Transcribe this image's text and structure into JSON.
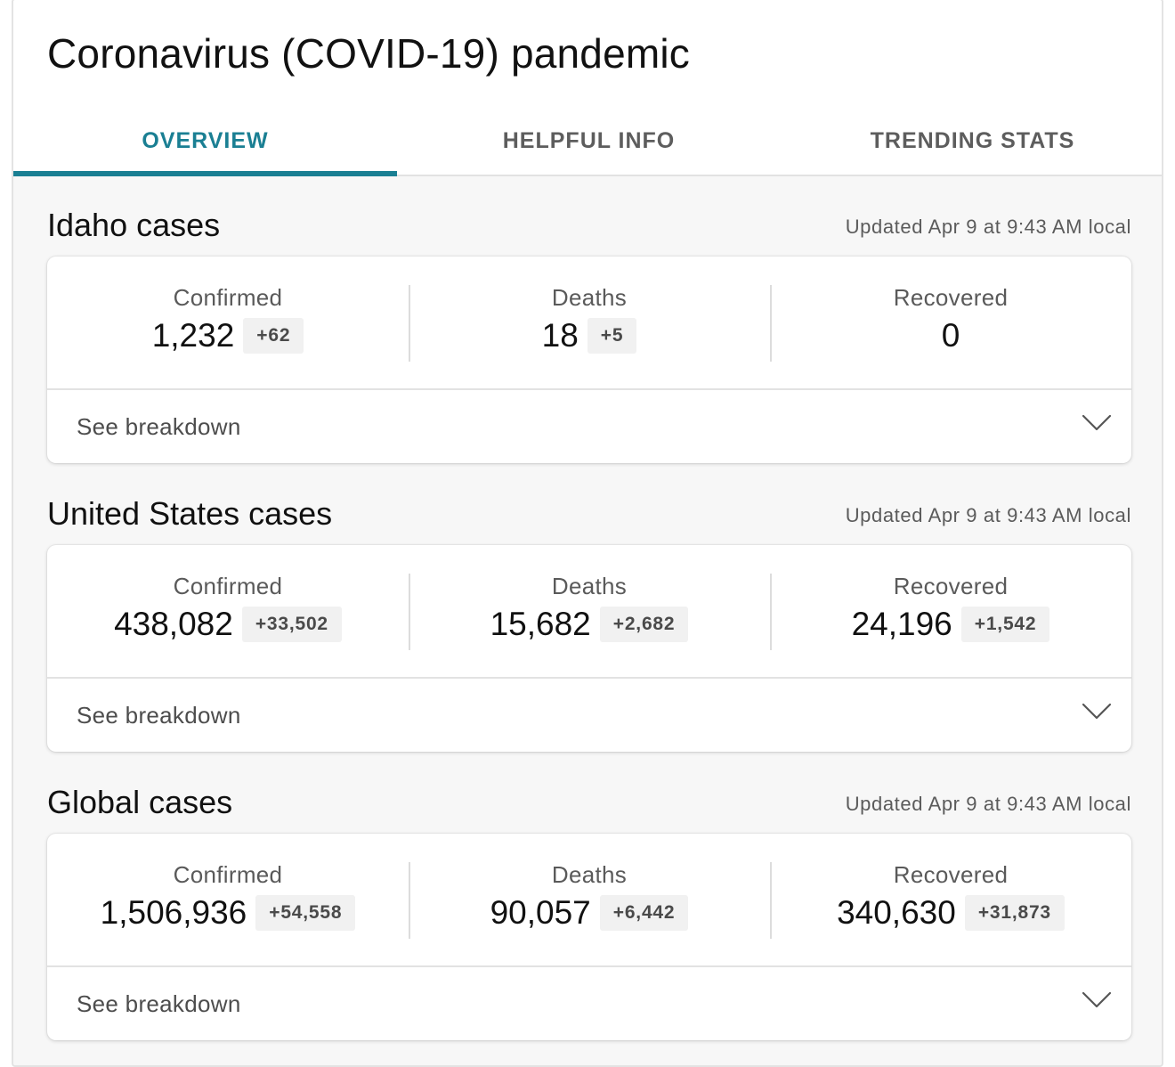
{
  "header": {
    "title": "Coronavirus (COVID-19) pandemic",
    "tabs": [
      {
        "label": "OVERVIEW",
        "active": true
      },
      {
        "label": "HELPFUL INFO",
        "active": false
      },
      {
        "label": "TRENDING STATS",
        "active": false
      }
    ]
  },
  "accent_color": "#1a7f93",
  "breakdown_label": "See breakdown",
  "sections": [
    {
      "title": "Idaho cases",
      "updated": "Updated Apr 9 at 9:43 AM local",
      "confirmed": {
        "label": "Confirmed",
        "value": "1,232",
        "delta": "+62"
      },
      "deaths": {
        "label": "Deaths",
        "value": "18",
        "delta": "+5"
      },
      "recovered": {
        "label": "Recovered",
        "value": "0",
        "delta": ""
      }
    },
    {
      "title": "United States cases",
      "updated": "Updated Apr 9 at 9:43 AM local",
      "confirmed": {
        "label": "Confirmed",
        "value": "438,082",
        "delta": "+33,502"
      },
      "deaths": {
        "label": "Deaths",
        "value": "15,682",
        "delta": "+2,682"
      },
      "recovered": {
        "label": "Recovered",
        "value": "24,196",
        "delta": "+1,542"
      }
    },
    {
      "title": "Global cases",
      "updated": "Updated Apr 9 at 9:43 AM local",
      "confirmed": {
        "label": "Confirmed",
        "value": "1,506,936",
        "delta": "+54,558"
      },
      "deaths": {
        "label": "Deaths",
        "value": "90,057",
        "delta": "+6,442"
      },
      "recovered": {
        "label": "Recovered",
        "value": "340,630",
        "delta": "+31,873"
      }
    }
  ],
  "icons": {
    "expand": "chevron-down-icon"
  }
}
